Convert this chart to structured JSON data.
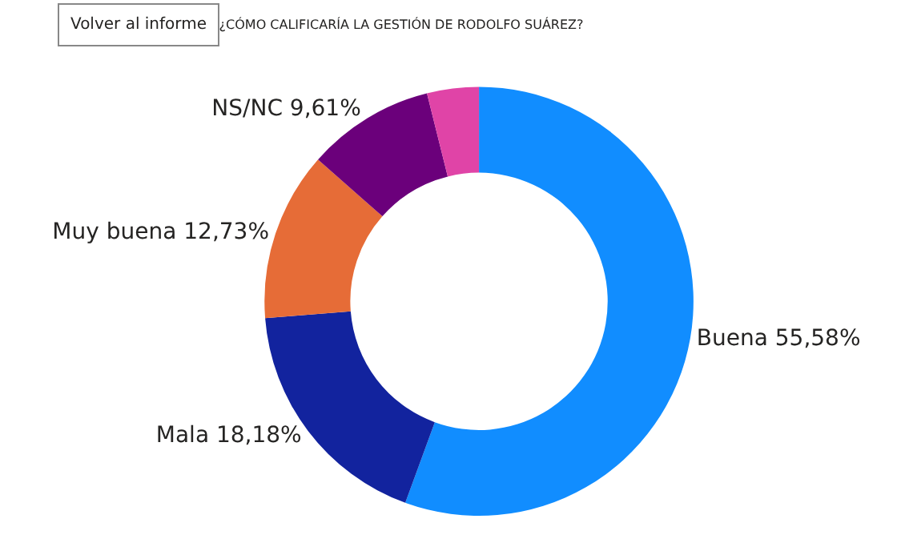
{
  "chart_data": {
    "type": "donut",
    "title": "¿CÓMO CALIFICARÍA LA GESTIÓN DE RODOLFO SUÁREZ?",
    "annotations": [
      "Volver al informe"
    ],
    "categories": [
      "Buena",
      "Mala",
      "Muy buena",
      "NS/NC",
      null
    ],
    "values": [
      55.58,
      18.18,
      12.73,
      9.61,
      3.9
    ],
    "value_labels": [
      "55,58%",
      "18,18%",
      "12,73%",
      "9,61%",
      null
    ],
    "colors": [
      "#118dff",
      "#12239e",
      "#e66c37",
      "#6b007b",
      "#e044a7"
    ],
    "legend": false
  }
}
